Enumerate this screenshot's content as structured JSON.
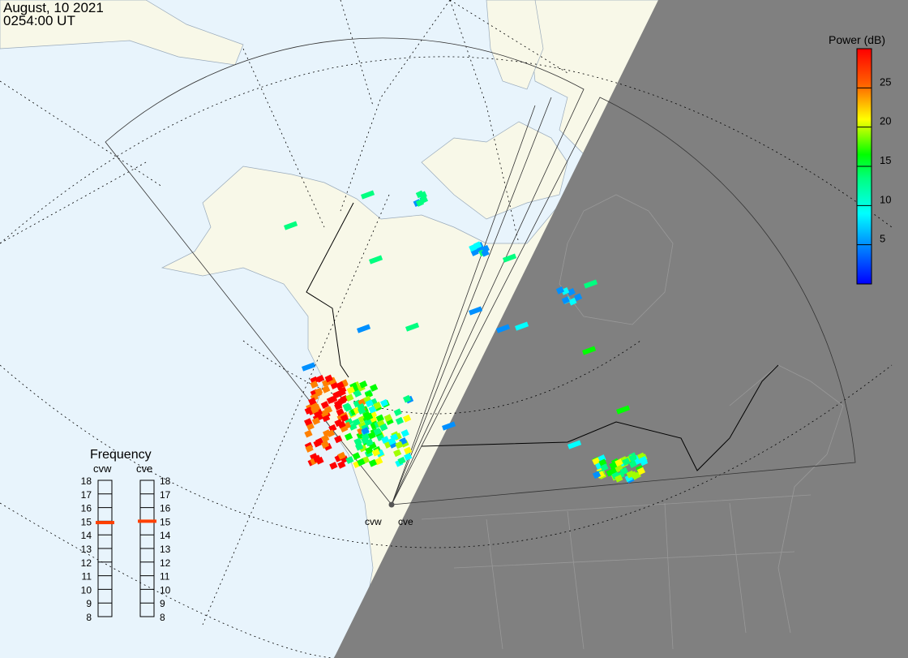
{
  "header": {
    "date": "August, 10 2021",
    "time": "0254:00 UT"
  },
  "colorbar": {
    "title": "Power (dB)",
    "min": 0,
    "max": 30,
    "ticks": [
      "25",
      "20",
      "15",
      "10",
      "5"
    ],
    "tick_values": [
      25,
      20,
      15,
      10,
      5
    ],
    "colors": [
      "#0000ff",
      "#0090ff",
      "#00ffff",
      "#00ff80",
      "#00ff00",
      "#a0ff00",
      "#ffff00",
      "#ff8000",
      "#ff0000"
    ]
  },
  "frequency": {
    "title": "Frequency",
    "unit_range": [
      8,
      18
    ],
    "ticks": [
      "18",
      "17",
      "16",
      "15",
      "14",
      "13",
      "12",
      "11",
      "10",
      "9",
      "8"
    ],
    "radars": [
      {
        "name": "cvw",
        "value_mhz": 14.9
      },
      {
        "name": "cve",
        "value_mhz": 15.0
      }
    ],
    "marker_color": "#ff4000"
  },
  "radar_labels": {
    "west": "cvw",
    "east": "cve"
  },
  "colors": {
    "ocean": "#e8f4fc",
    "land": "#f8f8e8",
    "night": "#808080"
  }
}
